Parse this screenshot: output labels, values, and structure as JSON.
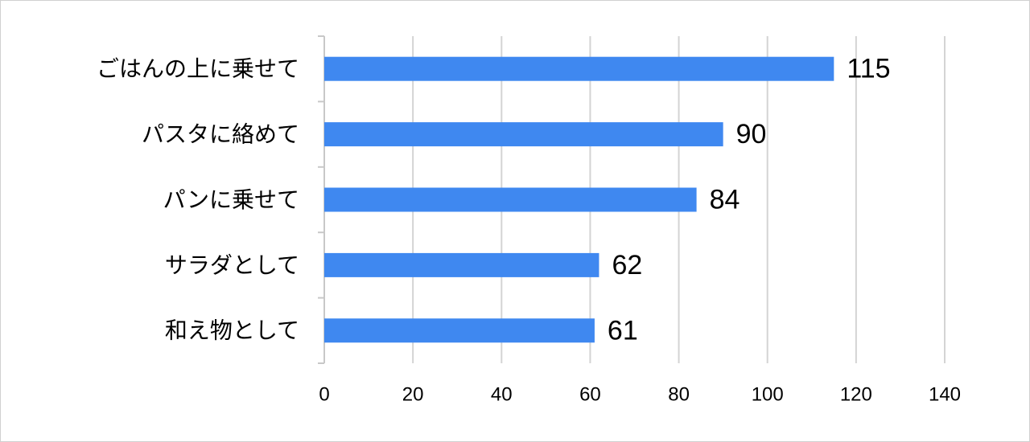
{
  "chart_data": {
    "type": "bar",
    "orientation": "horizontal",
    "categories": [
      "ごはんの上に乗せて",
      "パスタに絡めて",
      "パンに乗せて",
      "サラダとして",
      "和え物として"
    ],
    "values": [
      115,
      90,
      84,
      62,
      61
    ],
    "color": "#3f88f0",
    "xlim": [
      0,
      140
    ],
    "xticks": [
      0,
      20,
      40,
      60,
      80,
      100,
      120,
      140
    ],
    "grid": true
  }
}
